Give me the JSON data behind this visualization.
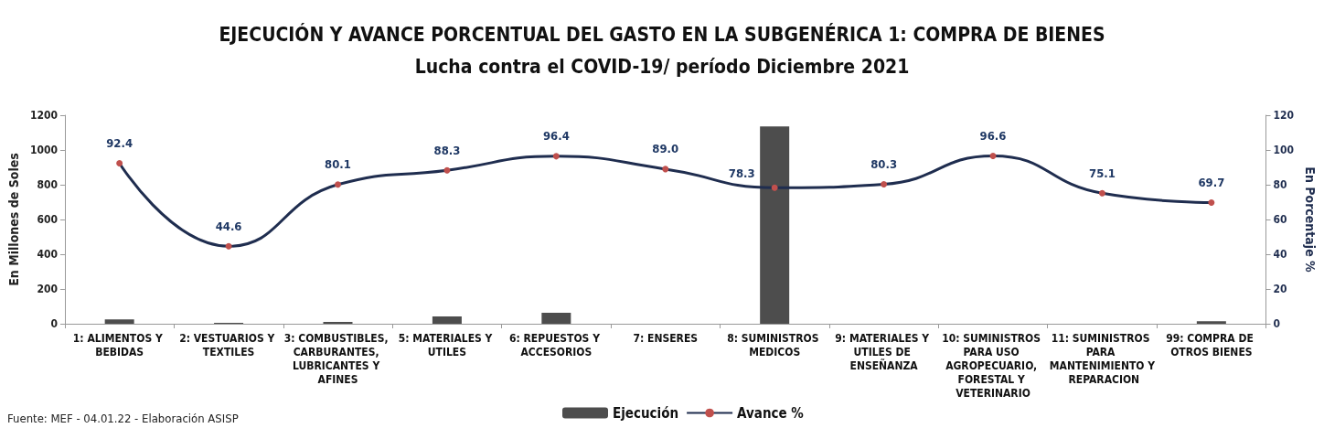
{
  "chart_data": {
    "type": "bar",
    "title": "EJECUCIÓN Y AVANCE PORCENTUAL DEL GASTO EN LA SUBGENÉRICA 1: COMPRA DE BIENES",
    "subtitle": "Lucha contra el COVID-19/ período Diciembre 2021",
    "ylabel": "En Millones de Soles",
    "y2label": "En Porcentaje %",
    "categories": [
      "1: ALIMENTOS Y BEBIDAS",
      "2: VESTUARIOS Y TEXTILES",
      "3: COMBUSTIBLES, CARBURANTES, LUBRICANTES Y AFINES",
      "5: MATERIALES Y UTILES",
      "6: REPUESTOS Y ACCESORIOS",
      "7: ENSERES",
      "8: SUMINISTROS MEDICOS",
      "9: MATERIALES Y UTILES DE ENSEÑANZA",
      "10: SUMINISTROS PARA USO AGROPECUARIO, FORESTAL Y VETERINARIO",
      "11: SUMINISTROS PARA MANTENIMIENTO Y REPARACION",
      "99: COMPRA DE OTROS BIENES"
    ],
    "series": [
      {
        "name": "Ejecución",
        "type": "bar",
        "color": "#4d4d4d",
        "values": [
          25,
          5,
          10,
          42,
          63,
          null,
          1135,
          null,
          null,
          null,
          15
        ]
      },
      {
        "name": "Avance %",
        "type": "line",
        "axis": "y2",
        "color": "#1f2d4f",
        "marker": "circle",
        "values": [
          92.4,
          44.6,
          80.1,
          88.3,
          96.4,
          89.0,
          78.3,
          80.3,
          96.6,
          75.1,
          69.7
        ],
        "value_labels": [
          "92.4",
          "44.6",
          "80.1",
          "88.3",
          "96.4",
          "89.0",
          "78.3",
          "80.3",
          "96.6",
          "75.1",
          "69.7"
        ]
      }
    ],
    "ylim": [
      0,
      1200
    ],
    "yticks": [
      0,
      200,
      400,
      600,
      800,
      1000,
      1200
    ],
    "y2lim": [
      0,
      120
    ],
    "y2ticks": [
      0,
      20,
      40,
      60,
      80,
      100,
      120
    ],
    "grid": false,
    "legend": "bottom",
    "annotations": [
      "Fuente: MEF - 04.01.22 - Elaboración ASISP"
    ]
  }
}
